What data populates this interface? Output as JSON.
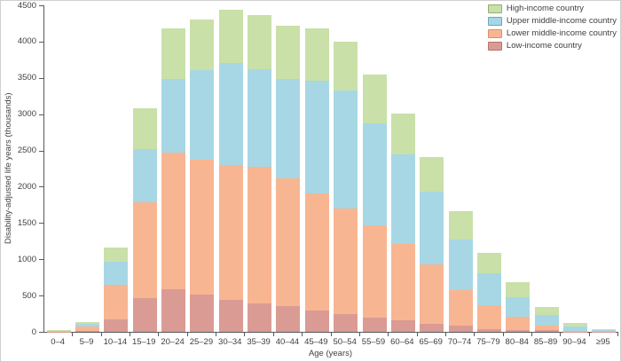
{
  "chart_data": {
    "type": "bar",
    "stacked": true,
    "title": "",
    "xlabel": "Age (years)",
    "ylabel": "Disability-adjusted life years (thousands)",
    "ylim": [
      0,
      4500
    ],
    "ytick_interval": 500,
    "yticks": [
      0,
      500,
      1000,
      1500,
      2000,
      2500,
      3000,
      3500,
      4000,
      4500
    ],
    "grid": false,
    "legend_position": "top-right",
    "legend_order": [
      "High-income country",
      "Upper middle-income country",
      "Lower middle-income country",
      "Low-income country"
    ],
    "categories": [
      "0–4",
      "5–9",
      "10–14",
      "15–19",
      "20–24",
      "25–29",
      "30–34",
      "35–39",
      "40–44",
      "45–49",
      "50–54",
      "55–59",
      "60–64",
      "65–69",
      "70–74",
      "75–79",
      "80–84",
      "85–89",
      "90–94",
      "≥95"
    ],
    "series": [
      {
        "name": "Low-income country",
        "color": "#d99b94",
        "border": "#b5736c",
        "values": [
          5,
          15,
          175,
          465,
          590,
          515,
          440,
          390,
          355,
          295,
          245,
          195,
          160,
          110,
          85,
          40,
          25,
          25,
          5,
          2
        ]
      },
      {
        "name": "Lower middle-income country",
        "color": "#f8b591",
        "border": "#df8f68",
        "values": [
          7,
          55,
          475,
          1320,
          1880,
          1860,
          1860,
          1885,
          1760,
          1615,
          1455,
          1270,
          1050,
          820,
          490,
          330,
          185,
          60,
          10,
          6
        ]
      },
      {
        "name": "Upper middle-income country",
        "color": "#a7d7e5",
        "border": "#6ba6bc",
        "values": [
          5,
          35,
          315,
          735,
          1020,
          1235,
          1405,
          1345,
          1370,
          1550,
          1625,
          1405,
          1235,
          1005,
          700,
          440,
          270,
          145,
          60,
          15
        ]
      },
      {
        "name": "High-income country",
        "color": "#c9e0a9",
        "border": "#93ae6e",
        "values": [
          5,
          30,
          195,
          560,
          695,
          695,
          735,
          745,
          735,
          720,
          675,
          675,
          565,
          475,
          390,
          280,
          210,
          110,
          50,
          17
        ]
      }
    ]
  },
  "colors": {
    "axis": "#58595b",
    "text": "#3f3f41",
    "background": "#ffffff"
  }
}
